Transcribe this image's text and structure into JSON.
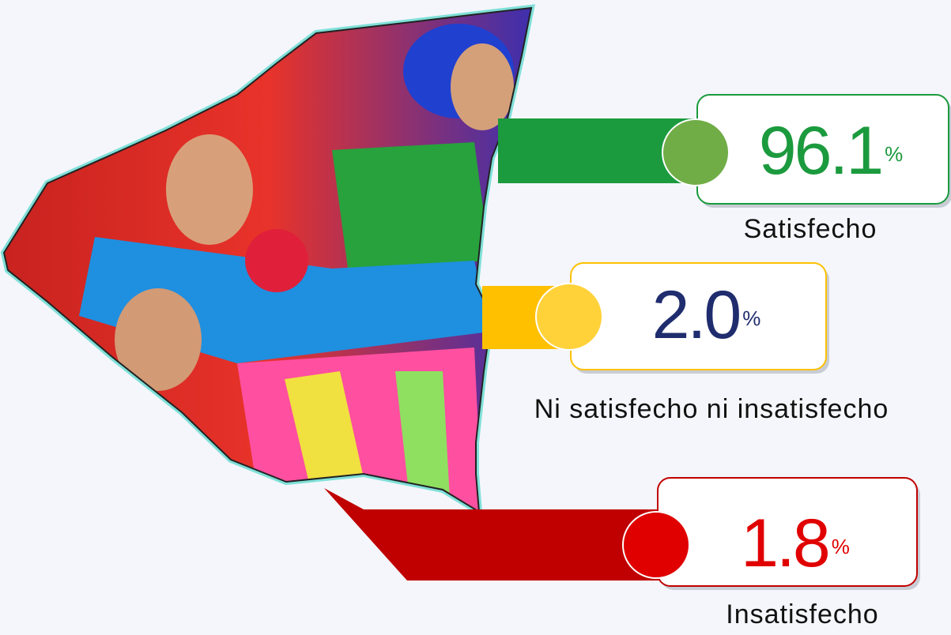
{
  "chart_data": {
    "type": "bar",
    "categories": [
      "Satisfecho",
      "Ni satisfecho ni insatisfecho",
      "Insatisfecho"
    ],
    "values": [
      96.1,
      2.0,
      1.8
    ],
    "value_labels": [
      "96.1",
      "2.0",
      "1.8"
    ],
    "unit": "%",
    "colors": [
      "#1b9a3e",
      "#ffc000",
      "#c00000"
    ],
    "dot_colors": [
      "#70ad47",
      "#ffd23a",
      "#e00000"
    ],
    "text_colors": [
      "#1b9a3e",
      "#1f2d6e",
      "#e00000"
    ]
  }
}
